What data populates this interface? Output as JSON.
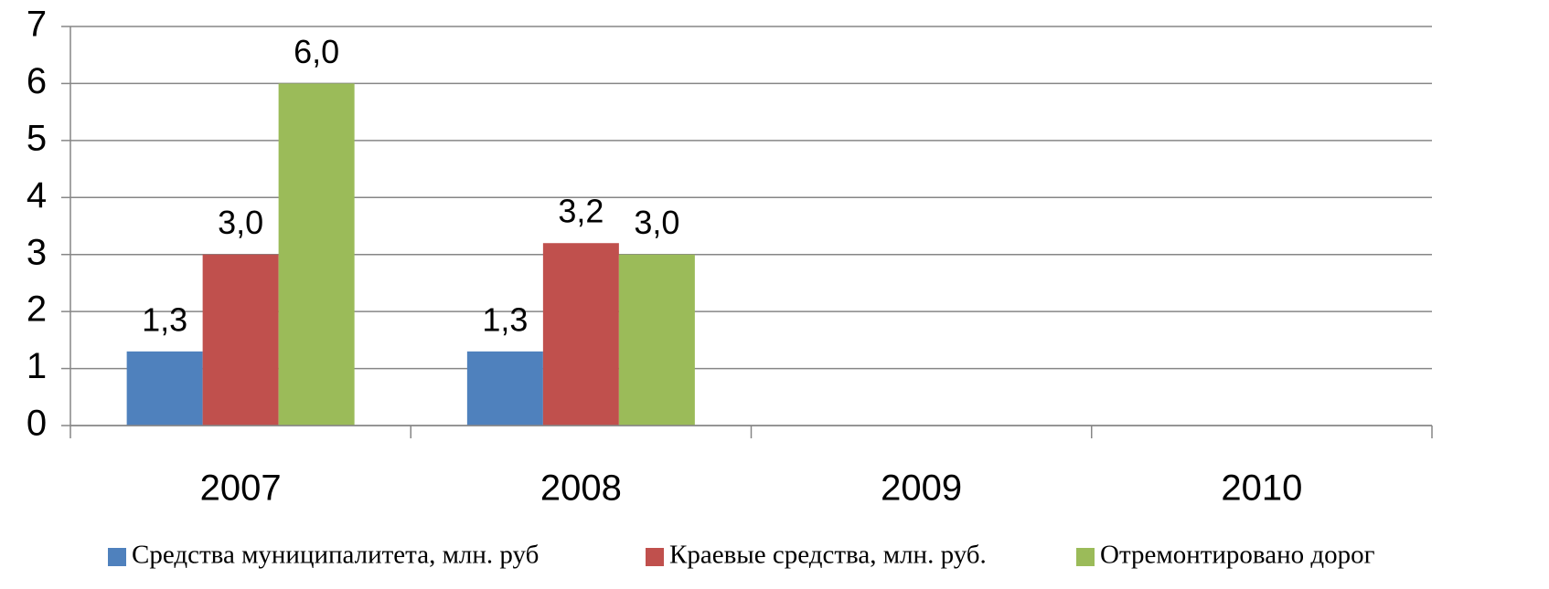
{
  "chart_data": {
    "type": "bar",
    "categories": [
      "2007",
      "2008",
      "2009",
      "2010"
    ],
    "series": [
      {
        "name": "Средства муниципалитета, млн. руб",
        "color": "#4f81bd",
        "values": [
          1.3,
          1.3,
          null,
          null
        ],
        "value_labels": [
          "1,3",
          "1,3",
          null,
          null
        ]
      },
      {
        "name": "Краевые средства, млн. руб.",
        "color": "#c0504d",
        "values": [
          3.0,
          3.2,
          null,
          null
        ],
        "value_labels": [
          "3,0",
          "3,2",
          null,
          null
        ]
      },
      {
        "name": "Отремонтировано дорог",
        "color": "#9bbb59",
        "values": [
          6.0,
          3.0,
          null,
          null
        ],
        "value_labels": [
          "6,0",
          "3,0",
          null,
          null
        ]
      }
    ],
    "ylim": [
      0,
      7
    ],
    "yticks": [
      0,
      1,
      2,
      3,
      4,
      5,
      6,
      7
    ],
    "grid": true,
    "legend": "bottom"
  }
}
